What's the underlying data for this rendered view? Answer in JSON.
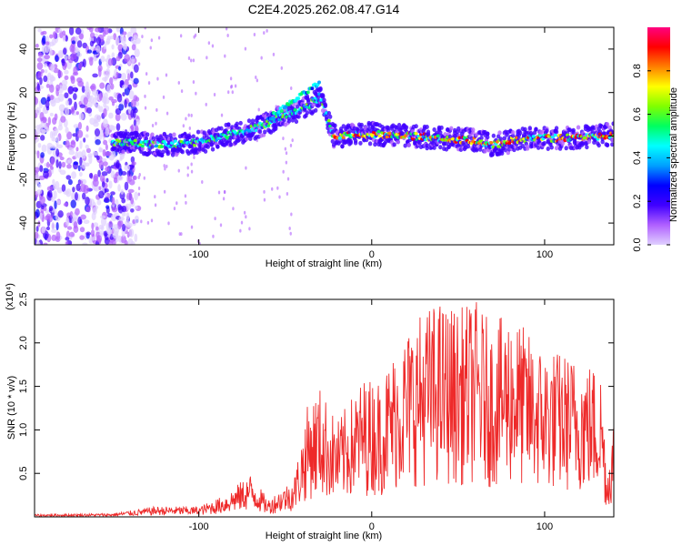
{
  "title": "C2E4.2025.262.08.47.G14",
  "chart_data": [
    {
      "type": "heatmap",
      "name": "spectrogram",
      "xlabel": "Height of straight line (km)",
      "ylabel": "Frequency (Hz)",
      "xlim": [
        -195,
        140
      ],
      "ylim": [
        -50,
        50
      ],
      "xticks": [
        -100,
        0,
        100
      ],
      "xtick_labels": [
        "-100",
        "0",
        "100"
      ],
      "yticks": [
        -40,
        -20,
        0,
        20,
        40
      ],
      "ytick_labels": [
        "-40",
        "-20",
        "0",
        "20",
        "40"
      ],
      "colorbar": {
        "label": "Normalized spectral amplitude",
        "range": [
          0,
          1
        ],
        "ticks": [
          0.0,
          0.2,
          0.4,
          0.6,
          0.8
        ],
        "tick_labels": [
          "0.0",
          "0.2",
          "0.4",
          "0.6",
          "0.8"
        ],
        "colors": [
          "#e0d0ff",
          "#b060ff",
          "#4000ff",
          "#0000ff",
          "#00a0ff",
          "#00ffff",
          "#00ff60",
          "#80ff00",
          "#ffff00",
          "#ff8000",
          "#ff0000",
          "#ff0080"
        ]
      },
      "trace": {
        "description": "dominant frequency ridge",
        "points": [
          {
            "x": -145,
            "y": -3
          },
          {
            "x": -120,
            "y": -4
          },
          {
            "x": -100,
            "y": -3
          },
          {
            "x": -85,
            "y": 0
          },
          {
            "x": -70,
            "y": 3
          },
          {
            "x": -60,
            "y": 6
          },
          {
            "x": -50,
            "y": 10
          },
          {
            "x": -40,
            "y": 12
          },
          {
            "x": -30,
            "y": 18
          },
          {
            "x": -22,
            "y": 0
          },
          {
            "x": 0,
            "y": 1
          },
          {
            "x": 20,
            "y": 0
          },
          {
            "x": 40,
            "y": -1
          },
          {
            "x": 60,
            "y": -2
          },
          {
            "x": 70,
            "y": -4
          },
          {
            "x": 90,
            "y": -1
          },
          {
            "x": 110,
            "y": -1
          },
          {
            "x": 130,
            "y": 0
          },
          {
            "x": 140,
            "y": 1
          }
        ]
      }
    },
    {
      "type": "line",
      "name": "snr",
      "xlabel": "Height of straight line (km)",
      "ylabel": "SNR (10 * v/v)",
      "yscale_label": "(x10⁴)",
      "xlim": [
        -195,
        140
      ],
      "ylim": [
        0,
        2.5
      ],
      "xticks": [
        -100,
        0,
        100
      ],
      "xtick_labels": [
        "-100",
        "0",
        "100"
      ],
      "yticks": [
        0.5,
        1.0,
        1.5,
        2.0,
        2.5
      ],
      "ytick_labels": [
        "0.5",
        "1.0",
        "1.5",
        "2.0",
        "2.5"
      ],
      "color": "#ee2a2a",
      "envelope": [
        {
          "x": -195,
          "y": 0.03
        },
        {
          "x": -150,
          "y": 0.04
        },
        {
          "x": -125,
          "y": 0.12
        },
        {
          "x": -100,
          "y": 0.12
        },
        {
          "x": -85,
          "y": 0.25
        },
        {
          "x": -70,
          "y": 0.5
        },
        {
          "x": -60,
          "y": 0.2
        },
        {
          "x": -45,
          "y": 0.45
        },
        {
          "x": -37,
          "y": 1.3
        },
        {
          "x": -30,
          "y": 1.5
        },
        {
          "x": -20,
          "y": 1.1
        },
        {
          "x": -5,
          "y": 1.6
        },
        {
          "x": 5,
          "y": 1.6
        },
        {
          "x": 15,
          "y": 2.0
        },
        {
          "x": 25,
          "y": 2.3
        },
        {
          "x": 38,
          "y": 2.5
        },
        {
          "x": 50,
          "y": 2.4
        },
        {
          "x": 60,
          "y": 2.5
        },
        {
          "x": 70,
          "y": 2.2
        },
        {
          "x": 80,
          "y": 2.4
        },
        {
          "x": 95,
          "y": 2.0
        },
        {
          "x": 110,
          "y": 1.9
        },
        {
          "x": 125,
          "y": 1.8
        },
        {
          "x": 133,
          "y": 1.7
        },
        {
          "x": 136,
          "y": 0.5
        },
        {
          "x": 140,
          "y": 1.2
        }
      ]
    }
  ]
}
